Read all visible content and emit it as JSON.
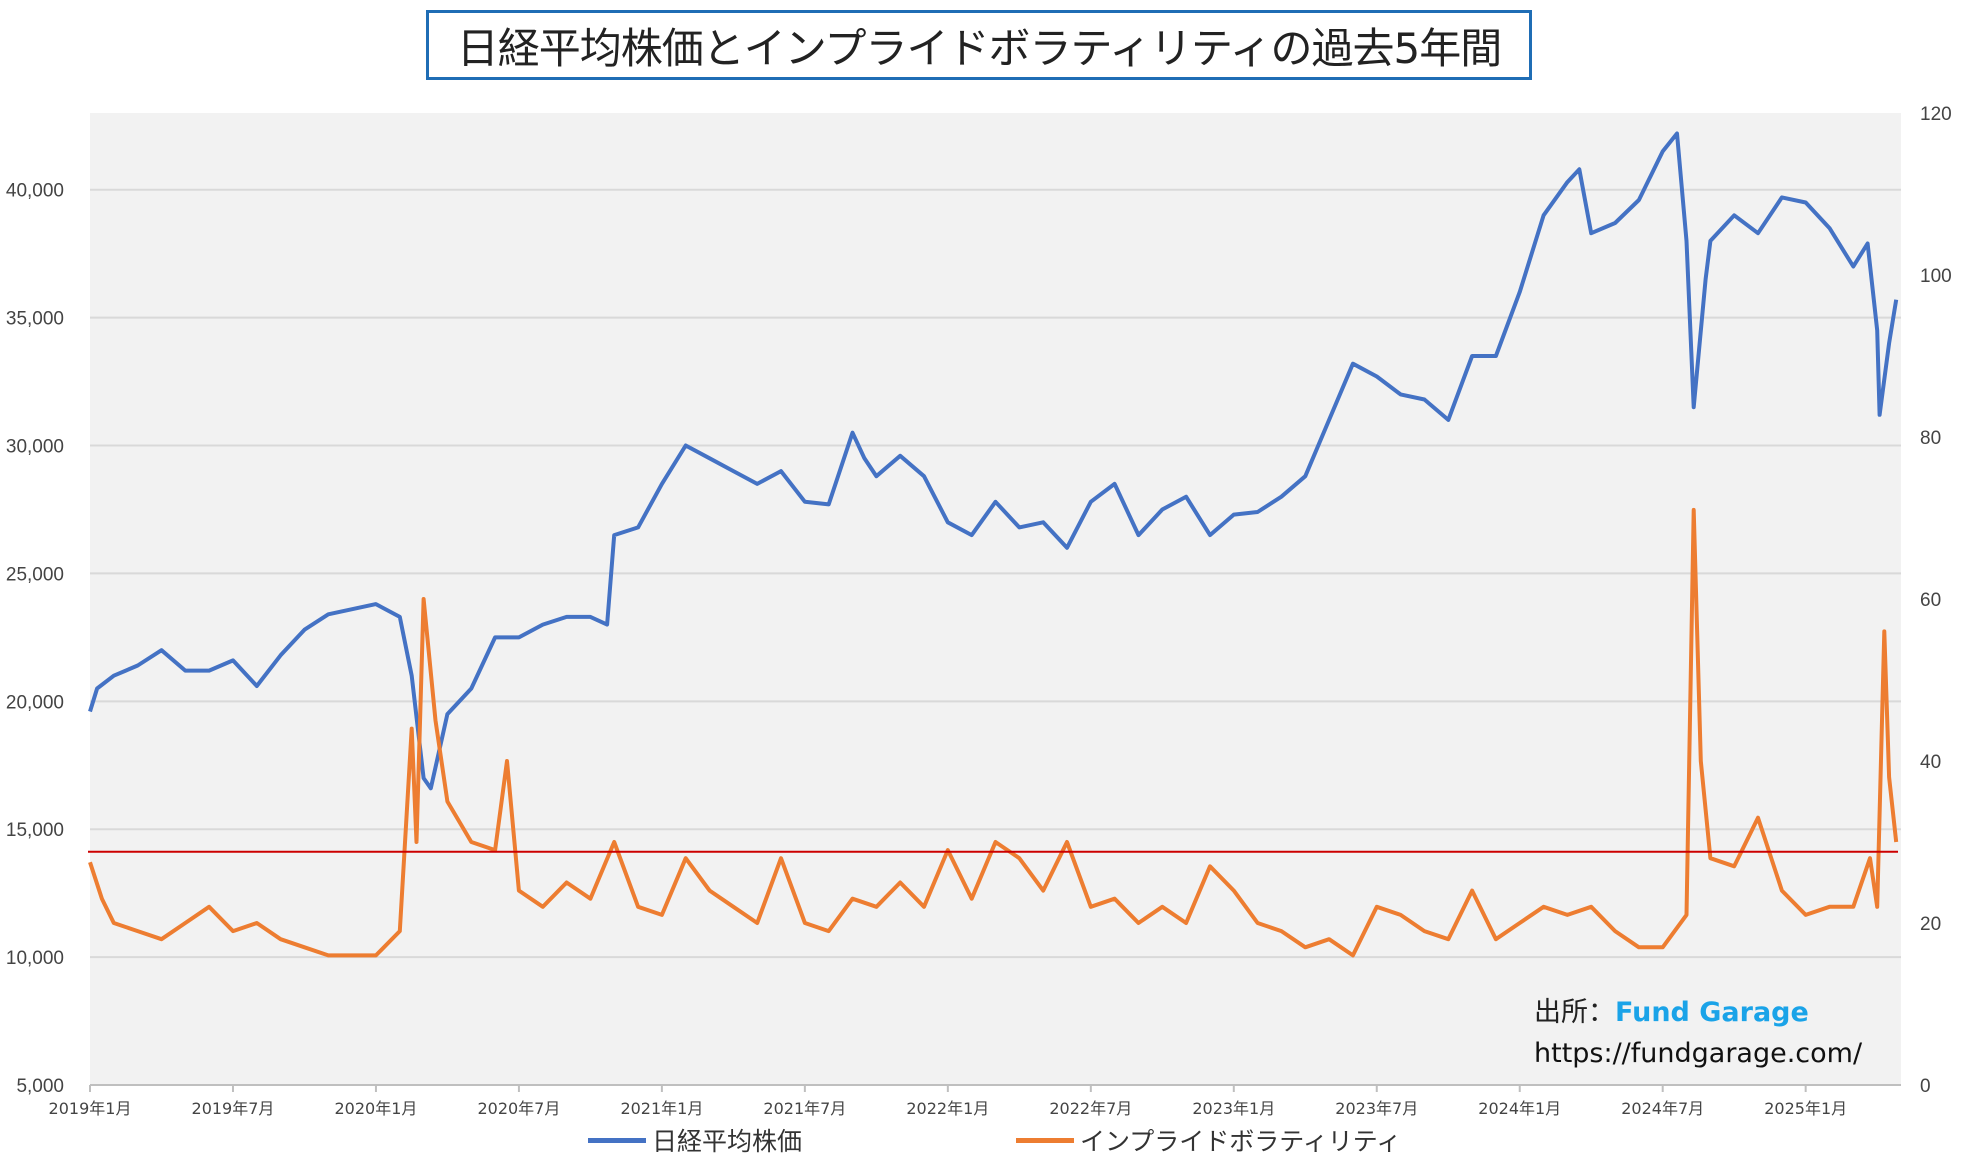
{
  "chart_data": {
    "type": "line",
    "title": "日経平均株価とインプライドボラティリティの過去5年間",
    "x_unit": "months since 2019年1月",
    "xlim": [
      0,
      76
    ],
    "x_ticks": [
      {
        "m": 0,
        "label": "2019年1月"
      },
      {
        "m": 6,
        "label": "2019年7月"
      },
      {
        "m": 12,
        "label": "2020年1月"
      },
      {
        "m": 18,
        "label": "2020年7月"
      },
      {
        "m": 24,
        "label": "2021年1月"
      },
      {
        "m": 30,
        "label": "2021年7月"
      },
      {
        "m": 36,
        "label": "2022年1月"
      },
      {
        "m": 42,
        "label": "2022年7月"
      },
      {
        "m": 48,
        "label": "2023年1月"
      },
      {
        "m": 54,
        "label": "2023年7月"
      },
      {
        "m": 60,
        "label": "2024年1月"
      },
      {
        "m": 66,
        "label": "2024年7月"
      },
      {
        "m": 72,
        "label": "2025年1月"
      }
    ],
    "y_left": {
      "lim": [
        5000,
        43000
      ],
      "ticks": [
        5000,
        10000,
        15000,
        20000,
        25000,
        30000,
        35000,
        40000
      ],
      "labels": [
        "5,000",
        "10,000",
        "15,000",
        "20,000",
        "25,000",
        "30,000",
        "35,000",
        "40,000"
      ]
    },
    "y_right": {
      "lim": [
        0,
        120
      ],
      "ticks": [
        0,
        20,
        40,
        60,
        80,
        100,
        120
      ],
      "labels": [
        "0",
        "20",
        "40",
        "60",
        "80",
        "100",
        "120"
      ]
    },
    "grid": true,
    "reference_line": {
      "axis": "right",
      "value": 28.8,
      "color": "#cc0000"
    },
    "series": [
      {
        "name": "日経平均株価",
        "axis": "left",
        "color": "#4472c4",
        "x": [
          0,
          0.3,
          1,
          2,
          3,
          4,
          5,
          6,
          7,
          8,
          9,
          10,
          11,
          12,
          13,
          13.5,
          14,
          14.3,
          15,
          16,
          17,
          18,
          19,
          20,
          21,
          21.7,
          22,
          23,
          24,
          25,
          26,
          27,
          28,
          29,
          30,
          31,
          32,
          32.5,
          33,
          34,
          35,
          36,
          37,
          38,
          39,
          40,
          41,
          42,
          43,
          44,
          45,
          46,
          47,
          48,
          49,
          50,
          51,
          52,
          53,
          54,
          55,
          56,
          57,
          58,
          59,
          60,
          61,
          62,
          62.5,
          63,
          64,
          65,
          66,
          66.6,
          67,
          67.3,
          67.8,
          68,
          69,
          70,
          71,
          72,
          73,
          74,
          74.6,
          75,
          75.1,
          75.5,
          75.8
        ],
        "y": [
          19600,
          20500,
          21000,
          21400,
          22000,
          21200,
          21200,
          21600,
          20600,
          21800,
          22800,
          23400,
          23600,
          23800,
          23300,
          21000,
          17000,
          16600,
          19500,
          20500,
          22500,
          22500,
          23000,
          23300,
          23300,
          23000,
          26500,
          26800,
          28500,
          30000,
          29500,
          29000,
          28500,
          29000,
          27800,
          27700,
          30500,
          29500,
          28800,
          29600,
          28800,
          27000,
          26500,
          27800,
          26800,
          27000,
          26000,
          27800,
          28500,
          26500,
          27500,
          28000,
          26500,
          27300,
          27400,
          28000,
          28800,
          31000,
          33200,
          32700,
          32000,
          31800,
          31000,
          33500,
          33500,
          36000,
          39000,
          40300,
          40800,
          38300,
          38700,
          39600,
          41500,
          42200,
          38000,
          31500,
          36500,
          38000,
          39000,
          38300,
          39700,
          39500,
          38500,
          37000,
          37900,
          34500,
          31200,
          34000,
          35700
        ]
      },
      {
        "name": "インプライドボラティリティ",
        "axis": "right",
        "color": "#ed7d31",
        "x": [
          0,
          0.5,
          1,
          2,
          3,
          4,
          5,
          6,
          7,
          8,
          9,
          10,
          11,
          12,
          13,
          13.5,
          13.7,
          14,
          14.5,
          15,
          16,
          17,
          17.5,
          18,
          19,
          20,
          21,
          22,
          23,
          24,
          25,
          26,
          27,
          28,
          29,
          30,
          31,
          32,
          33,
          34,
          35,
          36,
          37,
          38,
          39,
          40,
          41,
          42,
          43,
          44,
          45,
          46,
          47,
          48,
          49,
          50,
          51,
          52,
          53,
          54,
          55,
          56,
          57,
          58,
          59,
          60,
          61,
          62,
          63,
          64,
          65,
          66,
          67,
          67.3,
          67.6,
          68,
          69,
          70,
          71,
          72,
          73,
          74,
          74.7,
          75,
          75.3,
          75.5,
          75.8
        ],
        "y": [
          27.5,
          23,
          20,
          19,
          18,
          20,
          22,
          19,
          20,
          18,
          17,
          16,
          16,
          16,
          19,
          44,
          30,
          60,
          45,
          35,
          30,
          29,
          40,
          24,
          22,
          25,
          23,
          30,
          22,
          21,
          28,
          24,
          22,
          20,
          28,
          20,
          19,
          23,
          22,
          25,
          22,
          29,
          23,
          30,
          28,
          24,
          30,
          22,
          23,
          20,
          22,
          20,
          27,
          24,
          20,
          19,
          17,
          18,
          16,
          22,
          21,
          19,
          18,
          24,
          18,
          20,
          22,
          21,
          22,
          19,
          17,
          17,
          21,
          71,
          40,
          28,
          27,
          33,
          24,
          21,
          22,
          22,
          28,
          22,
          56,
          38,
          30
        ]
      }
    ]
  },
  "source": {
    "label": "出所：",
    "name": "Fund Garage",
    "url": "https://fundgarage.com/"
  }
}
